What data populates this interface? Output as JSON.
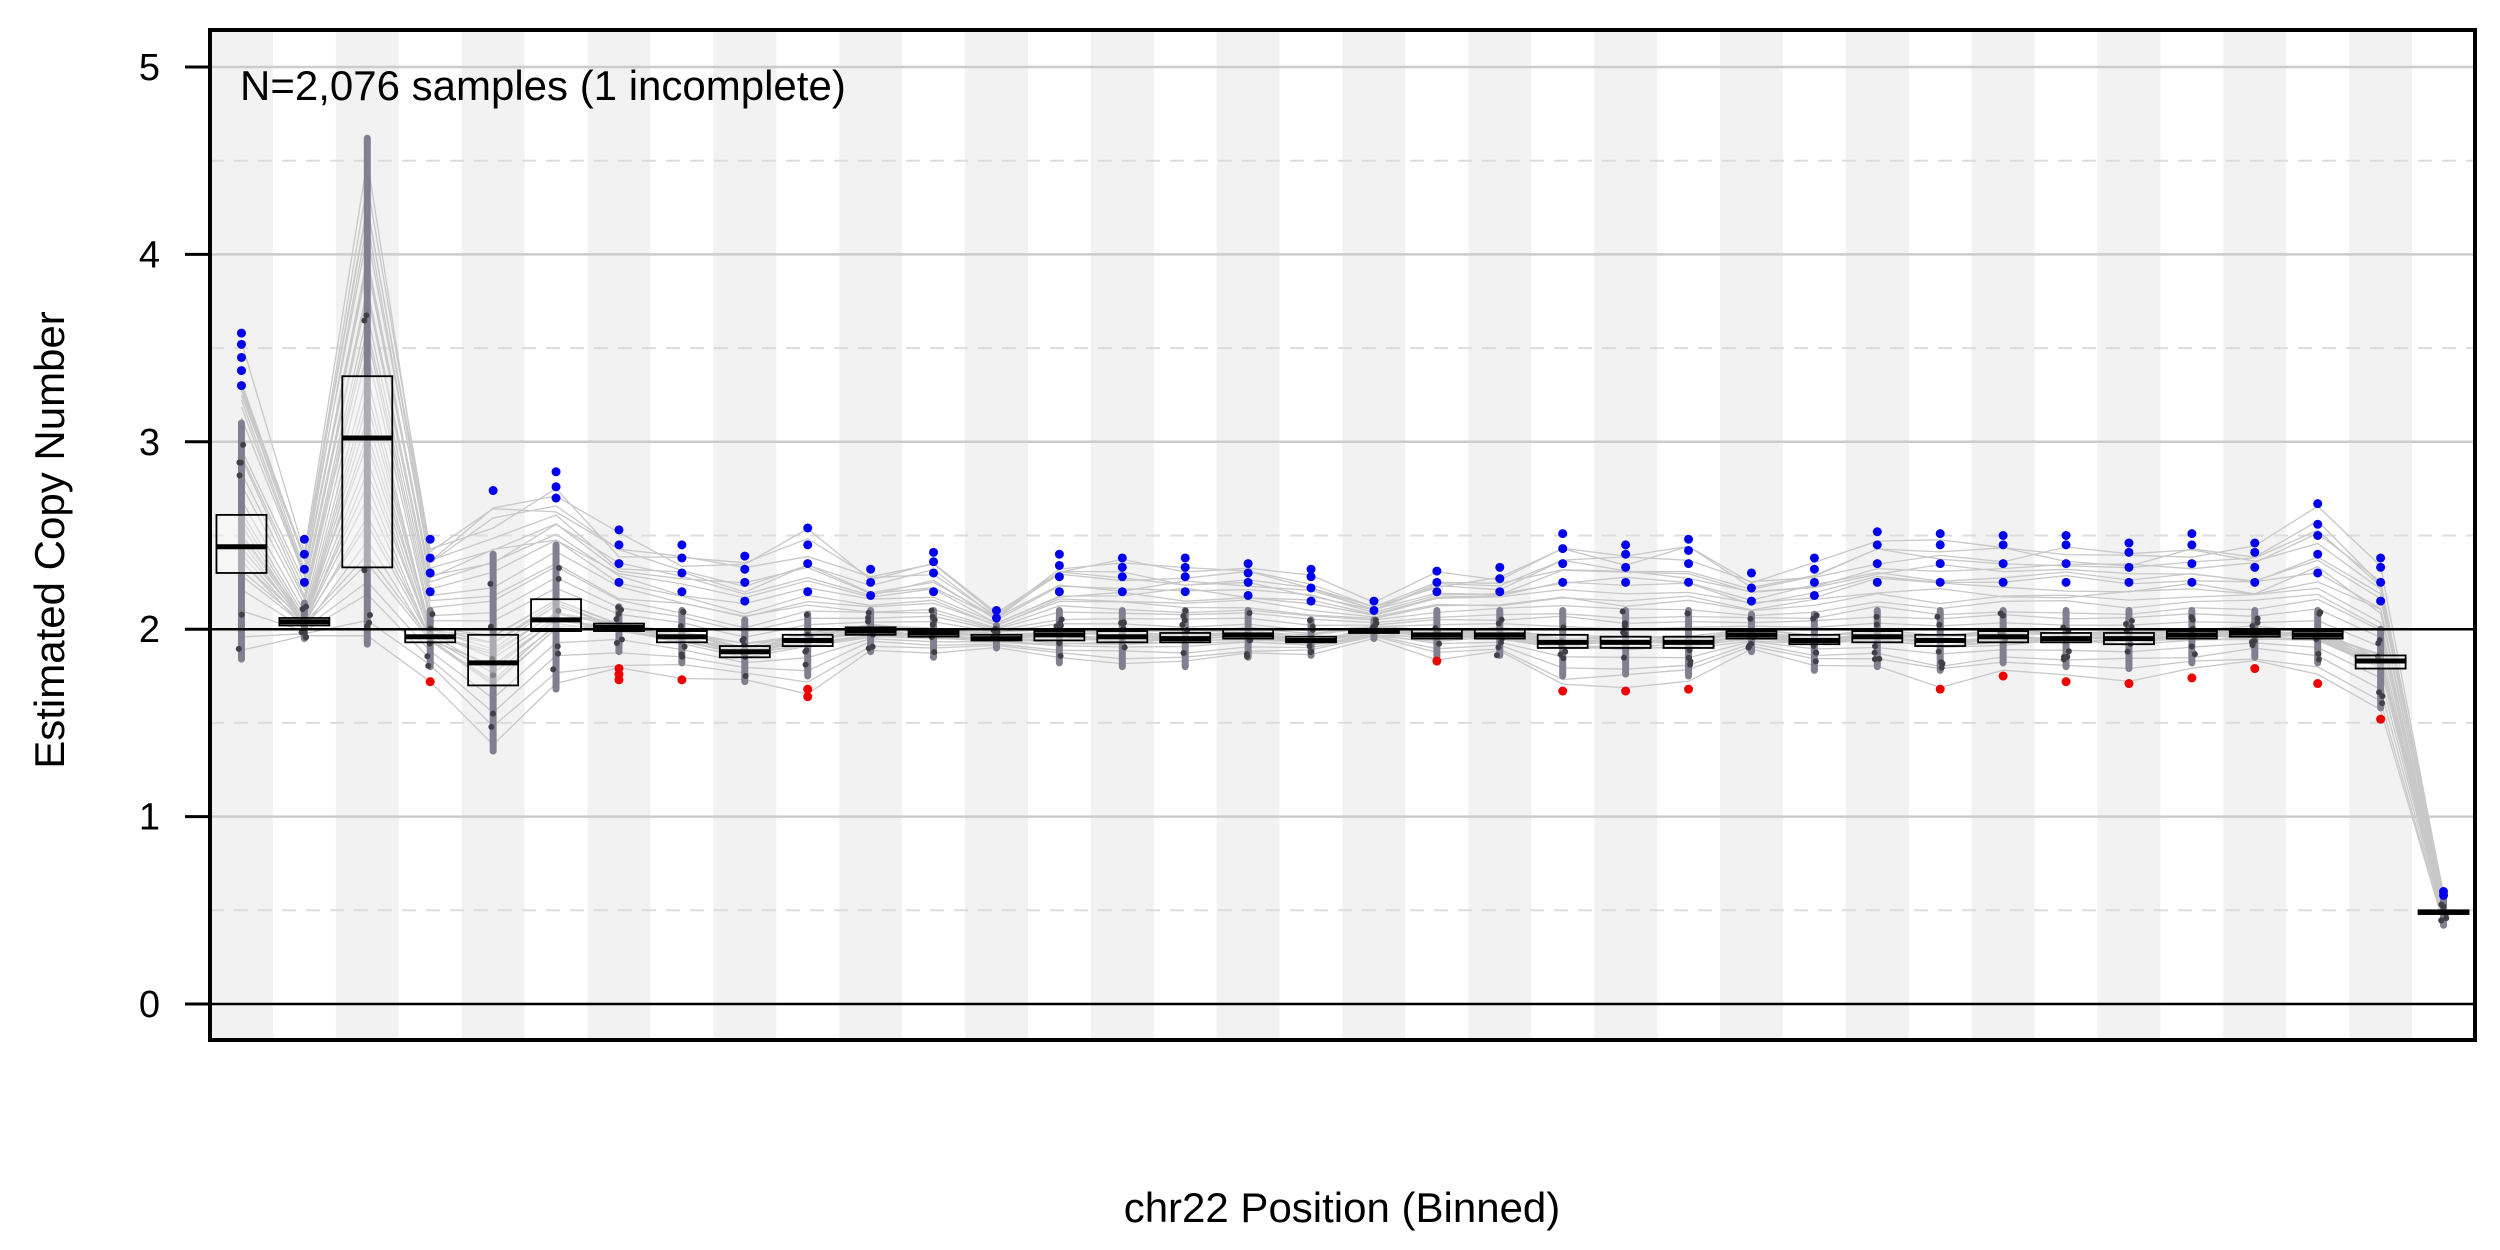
{
  "chart_data": {
    "type": "box",
    "annotation": "N=2,076 samples (1 incomplete)",
    "xlabel": "chr22 Position (Binned)",
    "ylabel": "Estimated Copy Number",
    "ylim": [
      -0.2,
      5.2
    ],
    "yticks": [
      0,
      1,
      2,
      3,
      4,
      5
    ],
    "grid": true,
    "reference_line": 2,
    "num_bins": 36,
    "bins": [
      {
        "q1": 2.3,
        "median": 2.44,
        "q3": 2.61,
        "lo": 1.84,
        "hi": 3.1,
        "out_low": [],
        "out_high": [
          3.3,
          3.38,
          3.45,
          3.52,
          3.58
        ]
      },
      {
        "q1": 2.02,
        "median": 2.04,
        "q3": 2.06,
        "lo": 1.95,
        "hi": 2.14,
        "out_low": [],
        "out_high": [
          2.25,
          2.32,
          2.4,
          2.48
        ]
      },
      {
        "q1": 2.33,
        "median": 3.02,
        "q3": 3.35,
        "lo": 1.92,
        "hi": 4.62,
        "out_low": [],
        "out_high": []
      },
      {
        "q1": 1.93,
        "median": 1.96,
        "q3": 2.0,
        "lo": 1.8,
        "hi": 2.1,
        "out_low": [
          1.72
        ],
        "out_high": [
          2.2,
          2.3,
          2.38,
          2.48
        ]
      },
      {
        "q1": 1.7,
        "median": 1.82,
        "q3": 1.97,
        "lo": 1.35,
        "hi": 2.4,
        "out_low": [],
        "out_high": [
          2.74
        ]
      },
      {
        "q1": 1.99,
        "median": 2.05,
        "q3": 2.16,
        "lo": 1.68,
        "hi": 2.45,
        "out_low": [],
        "out_high": [
          2.7,
          2.76,
          2.84
        ]
      },
      {
        "q1": 1.99,
        "median": 2.01,
        "q3": 2.03,
        "lo": 1.88,
        "hi": 2.12,
        "out_low": [
          1.73,
          1.76,
          1.79
        ],
        "out_high": [
          2.25,
          2.35,
          2.45,
          2.53
        ]
      },
      {
        "q1": 1.93,
        "median": 1.96,
        "q3": 1.99,
        "lo": 1.82,
        "hi": 2.1,
        "out_low": [
          1.73
        ],
        "out_high": [
          2.2,
          2.3,
          2.38,
          2.45
        ]
      },
      {
        "q1": 1.85,
        "median": 1.88,
        "q3": 1.91,
        "lo": 1.72,
        "hi": 2.05,
        "out_low": [],
        "out_high": [
          2.15,
          2.25,
          2.32,
          2.39
        ]
      },
      {
        "q1": 1.91,
        "median": 1.94,
        "q3": 1.97,
        "lo": 1.75,
        "hi": 2.08,
        "out_low": [
          1.64,
          1.68
        ],
        "out_high": [
          2.2,
          2.35,
          2.45,
          2.54
        ]
      },
      {
        "q1": 1.97,
        "median": 1.99,
        "q3": 2.01,
        "lo": 1.88,
        "hi": 2.1,
        "out_low": [],
        "out_high": [
          2.18,
          2.25,
          2.32
        ]
      },
      {
        "q1": 1.96,
        "median": 1.98,
        "q3": 2.0,
        "lo": 1.85,
        "hi": 2.1,
        "out_low": [],
        "out_high": [
          2.2,
          2.3,
          2.36,
          2.41
        ]
      },
      {
        "q1": 1.94,
        "median": 1.95,
        "q3": 1.97,
        "lo": 1.9,
        "hi": 2.02,
        "out_low": [],
        "out_high": [
          2.06,
          2.1
        ]
      },
      {
        "q1": 1.94,
        "median": 1.97,
        "q3": 1.99,
        "lo": 1.82,
        "hi": 2.1,
        "out_low": [],
        "out_high": [
          2.2,
          2.28,
          2.34,
          2.4
        ]
      },
      {
        "q1": 1.93,
        "median": 1.96,
        "q3": 1.99,
        "lo": 1.8,
        "hi": 2.1,
        "out_low": [],
        "out_high": [
          2.2,
          2.28,
          2.33,
          2.38
        ]
      },
      {
        "q1": 1.93,
        "median": 1.95,
        "q3": 1.98,
        "lo": 1.8,
        "hi": 2.1,
        "out_low": [],
        "out_high": [
          2.2,
          2.28,
          2.33,
          2.38
        ]
      },
      {
        "q1": 1.95,
        "median": 1.97,
        "q3": 2.0,
        "lo": 1.85,
        "hi": 2.1,
        "out_low": [],
        "out_high": [
          2.18,
          2.25,
          2.3,
          2.35
        ]
      },
      {
        "q1": 1.93,
        "median": 1.94,
        "q3": 1.96,
        "lo": 1.86,
        "hi": 2.05,
        "out_low": [],
        "out_high": [
          2.15,
          2.22,
          2.28,
          2.32
        ]
      },
      {
        "q1": 1.98,
        "median": 1.99,
        "q3": 2.0,
        "lo": 1.95,
        "hi": 2.05,
        "out_low": [],
        "out_high": [
          2.1,
          2.15
        ]
      },
      {
        "q1": 1.95,
        "median": 1.97,
        "q3": 2.0,
        "lo": 1.85,
        "hi": 2.1,
        "out_low": [
          1.83
        ],
        "out_high": [
          2.2,
          2.25,
          2.31
        ]
      },
      {
        "q1": 1.95,
        "median": 1.97,
        "q3": 2.0,
        "lo": 1.86,
        "hi": 2.1,
        "out_low": [],
        "out_high": [
          2.2,
          2.27,
          2.33
        ]
      },
      {
        "q1": 1.9,
        "median": 1.93,
        "q3": 1.97,
        "lo": 1.75,
        "hi": 2.1,
        "out_low": [
          1.67
        ],
        "out_high": [
          2.25,
          2.35,
          2.43,
          2.51
        ]
      },
      {
        "q1": 1.9,
        "median": 1.93,
        "q3": 1.96,
        "lo": 1.76,
        "hi": 2.1,
        "out_low": [
          1.67
        ],
        "out_high": [
          2.25,
          2.33,
          2.4,
          2.45
        ]
      },
      {
        "q1": 1.9,
        "median": 1.93,
        "q3": 1.96,
        "lo": 1.75,
        "hi": 2.1,
        "out_low": [
          1.68
        ],
        "out_high": [
          2.25,
          2.35,
          2.42,
          2.48
        ]
      },
      {
        "q1": 1.95,
        "median": 1.97,
        "q3": 1.99,
        "lo": 1.88,
        "hi": 2.08,
        "out_low": [],
        "out_high": [
          2.15,
          2.22,
          2.3
        ]
      },
      {
        "q1": 1.92,
        "median": 1.94,
        "q3": 1.97,
        "lo": 1.78,
        "hi": 2.08,
        "out_low": [],
        "out_high": [
          2.18,
          2.25,
          2.32,
          2.38
        ]
      },
      {
        "q1": 1.93,
        "median": 1.96,
        "q3": 1.99,
        "lo": 1.8,
        "hi": 2.1,
        "out_low": [],
        "out_high": [
          2.25,
          2.35,
          2.45,
          2.52
        ]
      },
      {
        "q1": 1.91,
        "median": 1.94,
        "q3": 1.97,
        "lo": 1.78,
        "hi": 2.1,
        "out_low": [
          1.68
        ],
        "out_high": [
          2.25,
          2.35,
          2.45,
          2.51
        ]
      },
      {
        "q1": 1.93,
        "median": 1.96,
        "q3": 1.99,
        "lo": 1.82,
        "hi": 2.1,
        "out_low": [
          1.75
        ],
        "out_high": [
          2.25,
          2.35,
          2.45,
          2.5
        ]
      },
      {
        "q1": 1.93,
        "median": 1.95,
        "q3": 1.98,
        "lo": 1.8,
        "hi": 2.1,
        "out_low": [
          1.72
        ],
        "out_high": [
          2.25,
          2.35,
          2.45,
          2.5
        ]
      },
      {
        "q1": 1.92,
        "median": 1.95,
        "q3": 1.98,
        "lo": 1.79,
        "hi": 2.1,
        "out_low": [
          1.71
        ],
        "out_high": [
          2.25,
          2.33,
          2.41,
          2.46
        ]
      },
      {
        "q1": 1.95,
        "median": 1.97,
        "q3": 1.99,
        "lo": 1.82,
        "hi": 2.1,
        "out_low": [
          1.74
        ],
        "out_high": [
          2.25,
          2.35,
          2.45,
          2.51
        ]
      },
      {
        "q1": 1.96,
        "median": 1.98,
        "q3": 2.0,
        "lo": 1.85,
        "hi": 2.1,
        "out_low": [
          1.79
        ],
        "out_high": [
          2.25,
          2.33,
          2.41,
          2.46
        ]
      },
      {
        "q1": 1.95,
        "median": 1.97,
        "q3": 1.99,
        "lo": 1.82,
        "hi": 2.1,
        "out_low": [
          1.71
        ],
        "out_high": [
          2.3,
          2.4,
          2.5,
          2.56,
          2.67
        ]
      },
      {
        "q1": 1.79,
        "median": 1.83,
        "q3": 1.86,
        "lo": 1.58,
        "hi": 2.0,
        "out_low": [
          1.52
        ],
        "out_high": [
          2.15,
          2.25,
          2.33,
          2.38
        ]
      },
      {
        "q1": 0.48,
        "median": 0.49,
        "q3": 0.5,
        "lo": 0.42,
        "hi": 0.56,
        "out_low": [],
        "out_high": [
          0.58,
          0.6
        ]
      }
    ],
    "colors": {
      "band": "#f2f2f2",
      "grid_major": "#cccccc",
      "grid_minor": "#dddddd",
      "sample_line": "#c8c8c8",
      "points": "#808090",
      "high_outlier": "#0000ee",
      "low_outlier": "#ee0000",
      "box_fill": "#ffffff",
      "box_stroke": "#000000",
      "median": "#000000"
    }
  }
}
